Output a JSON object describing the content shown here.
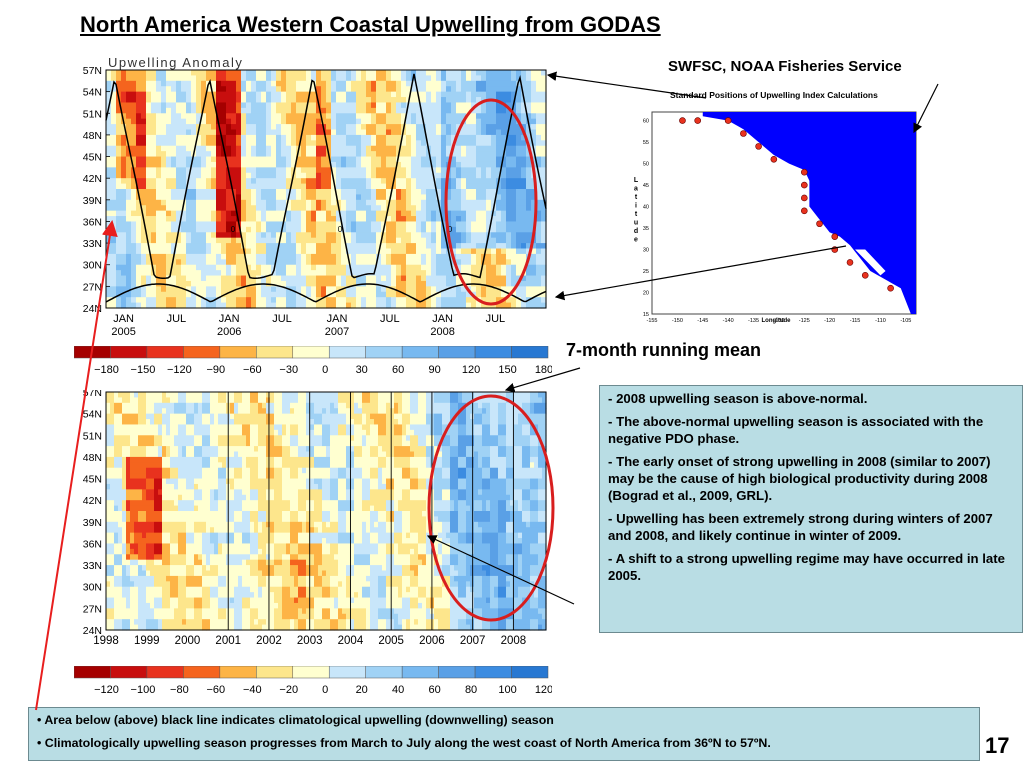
{
  "slide": {
    "title": "North America Western Coastal Upwelling from GODAS",
    "source": "SWFSC, NOAA Fisheries Service",
    "running_mean_label": "7-month running mean",
    "page_number": "17"
  },
  "notes": [
    "2008 upwelling season is above-normal.",
    "The above-normal upwelling season is associated with the negative PDO phase.",
    "The early onset of strong upwelling in 2008 (similar to 2007) may be the cause of high biological productivity during 2008 (Bograd et al., 2009, GRL).",
    "Upwelling has been extremely strong during winters of 2007 and 2008, and likely continue in winter of 2009.",
    "A shift to a strong upwelling regime may have occurred in late 2005."
  ],
  "footnotes": [
    "Area below (above) black line indicates climatological upwelling (downwelling) season",
    "Climatologically upwelling season progresses from March to July along the west coast of North America from 36ºN to 57ºN."
  ],
  "colors": {
    "scale": [
      "#a50000",
      "#c80e0e",
      "#e8321e",
      "#f5641e",
      "#fdb446",
      "#fde68c",
      "#ffffd0",
      "#c8e6fa",
      "#a0d2f5",
      "#78b9f0",
      "#5aa0e6",
      "#3c8ce1",
      "#2878d2"
    ],
    "ocean": "#0000ff",
    "station": "#e8321e",
    "note_box": "#b9dde4",
    "circle": "#d81e1e",
    "arrow": "#e81e1e"
  },
  "chart_data": [
    {
      "type": "heatmap",
      "title": "Upwelling  Anomaly",
      "y_ticks": [
        "57N",
        "54N",
        "51N",
        "48N",
        "45N",
        "42N",
        "39N",
        "36N",
        "33N",
        "30N",
        "27N",
        "24N"
      ],
      "x_ticks": [
        "JAN 2005",
        "JUL",
        "JAN 2006",
        "JUL",
        "JAN 2007",
        "JUL",
        "JAN 2008",
        "JUL"
      ],
      "colorbar_ticks": [
        "−180",
        "−150",
        "−120",
        "−90",
        "−60",
        "−30",
        "0",
        "30",
        "60",
        "90",
        "120",
        "150",
        "180"
      ],
      "contour_zero_label": "0"
    },
    {
      "type": "heatmap",
      "title": "",
      "y_ticks": [
        "57N",
        "54N",
        "51N",
        "48N",
        "45N",
        "42N",
        "39N",
        "36N",
        "33N",
        "30N",
        "27N",
        "24N"
      ],
      "x_ticks": [
        "1998",
        "1999",
        "2000",
        "2001",
        "2002",
        "2003",
        "2004",
        "2005",
        "2006",
        "2007",
        "2008"
      ],
      "colorbar_ticks": [
        "−120",
        "−100",
        "−80",
        "−60",
        "−40",
        "−20",
        "0",
        "20",
        "40",
        "60",
        "80",
        "100",
        "120"
      ]
    },
    {
      "type": "scatter",
      "title": "Standard Positions of Upwelling Index Calculations",
      "xlabel": "Longitude",
      "ylabel": "Latitude",
      "x_ticks": [
        "-155",
        "-150",
        "-145",
        "-140",
        "-135",
        "-130",
        "-125",
        "-120",
        "-115",
        "-110",
        "-105"
      ],
      "y_ticks": [
        "60",
        "55",
        "50",
        "45",
        "40",
        "35",
        "30",
        "25",
        "20",
        "15"
      ],
      "xlim": [
        -155,
        -103
      ],
      "ylim": [
        15,
        62
      ],
      "stations": [
        {
          "lon": -146,
          "lat": 60
        },
        {
          "lon": -149,
          "lat": 60
        },
        {
          "lon": -140,
          "lat": 60
        },
        {
          "lon": -137,
          "lat": 57
        },
        {
          "lon": -134,
          "lat": 54
        },
        {
          "lon": -131,
          "lat": 51
        },
        {
          "lon": -125,
          "lat": 48
        },
        {
          "lon": -125,
          "lat": 45
        },
        {
          "lon": -125,
          "lat": 42
        },
        {
          "lon": -125,
          "lat": 39
        },
        {
          "lon": -122,
          "lat": 36
        },
        {
          "lon": -119,
          "lat": 33
        },
        {
          "lon": -119,
          "lat": 30
        },
        {
          "lon": -116,
          "lat": 27
        },
        {
          "lon": -113,
          "lat": 24
        },
        {
          "lon": -108,
          "lat": 21
        }
      ]
    }
  ]
}
